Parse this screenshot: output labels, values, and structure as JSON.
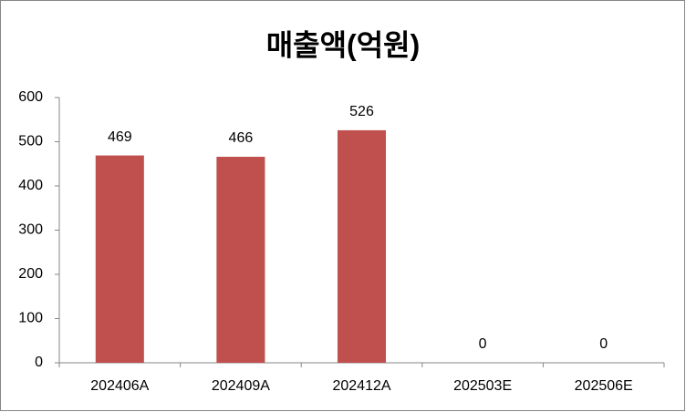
{
  "chart_data": {
    "type": "bar",
    "title": "매출액(억원)",
    "categories": [
      "202406A",
      "202409A",
      "202412A",
      "202503E",
      "202506E"
    ],
    "values": [
      469,
      466,
      526,
      0,
      0
    ],
    "color": "#c0504d",
    "ylim": [
      0,
      600
    ],
    "yticks": [
      0,
      100,
      200,
      300,
      400,
      500,
      600
    ],
    "grid": false,
    "data_labels": true
  }
}
